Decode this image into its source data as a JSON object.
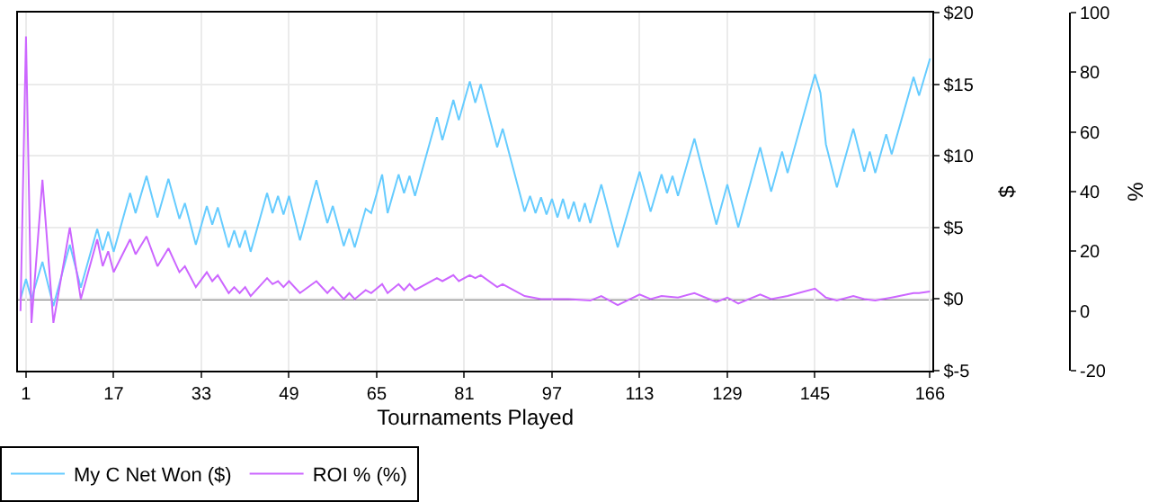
{
  "chart_data": {
    "type": "line",
    "xlabel": "Tournaments Played",
    "ylabel": "$",
    "y2label": "%",
    "xlim": [
      -0.5,
      166.5
    ],
    "xticks": [
      1,
      17,
      33,
      49,
      65,
      81,
      97,
      113,
      129,
      145,
      166
    ],
    "ylim": [
      -5,
      20
    ],
    "yticks": [
      {
        "value": -5,
        "label": "$-5"
      },
      {
        "value": 0,
        "label": "$0"
      },
      {
        "value": 5,
        "label": "$5"
      },
      {
        "value": 10,
        "label": "$10"
      },
      {
        "value": 15,
        "label": "$15"
      },
      {
        "value": 20,
        "label": "$20"
      }
    ],
    "y2lim": [
      -20,
      100
    ],
    "y2ticks": [
      -20,
      0,
      20,
      40,
      60,
      80,
      100
    ],
    "grid": true,
    "legend": "bottom left",
    "marker": "none",
    "line_style": "solid",
    "ref_lines": [
      {
        "axis": "y",
        "value": 0,
        "color": "#000000"
      }
    ],
    "series": [
      {
        "name": "My C Net Won ($)",
        "color": "#66ccff",
        "x": [
          0,
          1,
          2,
          4,
          6,
          9,
          11,
          14,
          15,
          16,
          17,
          20,
          21,
          23,
          25,
          27,
          29,
          30,
          32,
          34,
          35,
          36,
          38,
          39,
          40,
          41,
          42,
          45,
          46,
          47,
          48,
          49,
          51,
          54,
          56,
          57,
          59,
          60,
          61,
          63,
          64,
          66,
          67,
          69,
          70,
          71,
          72,
          76,
          77,
          79,
          80,
          82,
          83,
          84,
          87,
          88,
          92,
          93,
          94,
          95,
          96,
          97,
          98,
          99,
          100,
          101,
          102,
          103,
          104,
          106,
          109,
          113,
          115,
          117,
          118,
          119,
          120,
          123,
          127,
          129,
          131,
          135,
          137,
          139,
          140,
          145,
          146,
          147,
          149,
          152,
          154,
          155,
          156,
          158,
          159,
          163,
          164,
          166
        ],
        "values": [
          0,
          1.4,
          0,
          2.6,
          -0.5,
          3.8,
          0.8,
          4.9,
          3.4,
          4.7,
          3.3,
          7.4,
          6,
          8.6,
          5.7,
          8.4,
          5.6,
          6.7,
          3.8,
          6.5,
          5.2,
          6.4,
          3.6,
          4.8,
          3.6,
          4.8,
          3.3,
          7.4,
          6,
          7.2,
          5.9,
          7.2,
          4.1,
          8.3,
          5.3,
          6.5,
          3.7,
          4.9,
          3.6,
          6.3,
          6,
          8.7,
          6,
          8.7,
          7.4,
          8.6,
          7.2,
          12.7,
          11.1,
          13.9,
          12.5,
          15.2,
          13.7,
          15,
          10.6,
          11.9,
          6.1,
          7.2,
          6,
          7.1,
          5.9,
          7,
          5.7,
          7,
          5.6,
          6.8,
          5.4,
          6.7,
          5.3,
          8,
          3.6,
          8.9,
          6.1,
          8.7,
          7.4,
          8.6,
          7.2,
          11.2,
          5.2,
          8,
          5,
          10.6,
          7.5,
          10.3,
          8.8,
          15.7,
          14.4,
          10.8,
          7.8,
          11.9,
          8.9,
          10.3,
          8.8,
          11.5,
          10.1,
          15.5,
          14.2,
          16.8
        ]
      },
      {
        "name": "ROI % (%)",
        "color": "#cc66ff",
        "axis": "y2",
        "x": [
          0,
          1,
          2,
          4,
          6,
          9,
          11,
          14,
          15,
          16,
          17,
          20,
          21,
          23,
          25,
          27,
          29,
          30,
          32,
          34,
          35,
          36,
          38,
          39,
          40,
          41,
          42,
          45,
          46,
          47,
          48,
          49,
          51,
          54,
          56,
          57,
          59,
          60,
          61,
          63,
          64,
          66,
          67,
          69,
          70,
          71,
          72,
          76,
          77,
          79,
          80,
          82,
          83,
          84,
          87,
          88,
          92,
          95,
          100,
          104,
          106,
          109,
          113,
          115,
          117,
          120,
          123,
          127,
          129,
          131,
          135,
          137,
          140,
          145,
          147,
          149,
          152,
          154,
          156,
          159,
          163,
          164,
          166
        ],
        "values": [
          0,
          92,
          -4,
          44,
          -4,
          28,
          4,
          24,
          15,
          20,
          13,
          24,
          19,
          25,
          15,
          21,
          13,
          15,
          8,
          13,
          10,
          12,
          6,
          8,
          6,
          8,
          5,
          11,
          9,
          10,
          8,
          10,
          6,
          10,
          6,
          8,
          4,
          6,
          4,
          7,
          6,
          9,
          6,
          9,
          7,
          9,
          7,
          11,
          10,
          12,
          10,
          12,
          11,
          12,
          8,
          9,
          5,
          4,
          4,
          3.5,
          5,
          2,
          5.5,
          4,
          5,
          4.5,
          6,
          3,
          4.5,
          2.5,
          5.5,
          4,
          5,
          7.5,
          4.5,
          3.5,
          5,
          4,
          3.5,
          4.5,
          6,
          6,
          6.5
        ]
      }
    ]
  }
}
